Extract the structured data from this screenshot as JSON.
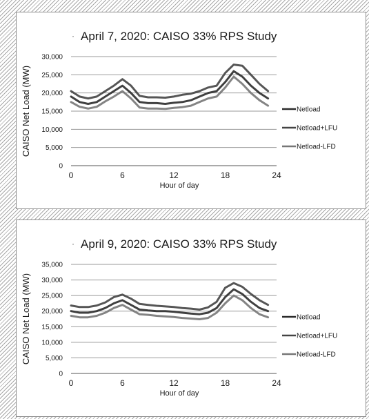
{
  "chart_data": [
    {
      "type": "line",
      "title": "April 7, 2020: CAISO  33% RPS Study",
      "xlabel": "Hour of day",
      "ylabel": "CAISO Net Load (MW)",
      "xlim": [
        0,
        24
      ],
      "ylim": [
        0,
        30000
      ],
      "xticks": [
        "0",
        "6",
        "12",
        "18",
        "24"
      ],
      "yticks": [
        "0",
        "5,000",
        "10,000",
        "15,000",
        "20,000",
        "25,000",
        "30,000"
      ],
      "grid": true,
      "legend_position": "right",
      "x": [
        0,
        1,
        2,
        3,
        4,
        5,
        6,
        7,
        8,
        9,
        10,
        11,
        12,
        13,
        14,
        15,
        16,
        17,
        18,
        19,
        20,
        21,
        22,
        23
      ],
      "series": [
        {
          "name": "Netload",
          "color": "#2b2b2b",
          "values": [
            19000,
            17500,
            17000,
            17500,
            19000,
            20500,
            22000,
            20000,
            17500,
            17200,
            17200,
            17000,
            17300,
            17500,
            18000,
            19000,
            20000,
            20500,
            23000,
            26000,
            24500,
            22000,
            20000,
            18500
          ]
        },
        {
          "name": "Netload+LFU",
          "color": "#444444",
          "values": [
            20500,
            19000,
            18500,
            19000,
            20500,
            22000,
            23800,
            22000,
            19200,
            18800,
            18800,
            18700,
            19000,
            19500,
            19800,
            20500,
            21500,
            22000,
            25500,
            27800,
            27500,
            25000,
            22500,
            20500
          ]
        },
        {
          "name": "Netload-LFD",
          "color": "#777777",
          "values": [
            17500,
            16200,
            15700,
            16200,
            17700,
            19000,
            20500,
            18500,
            16000,
            15700,
            15700,
            15600,
            15900,
            16100,
            16500,
            17500,
            18500,
            19000,
            21500,
            24500,
            22500,
            20000,
            18000,
            16500
          ]
        }
      ]
    },
    {
      "type": "line",
      "title": "April 9, 2020: CAISO  33% RPS Study",
      "xlabel": "Hour of day",
      "ylabel": "CAISO Net Load (MW)",
      "xlim": [
        0,
        24
      ],
      "ylim": [
        0,
        35000
      ],
      "xticks": [
        "0",
        "6",
        "12",
        "18",
        "24"
      ],
      "yticks": [
        "0",
        "5,000",
        "10,000",
        "15,000",
        "20,000",
        "25,000",
        "30,000",
        "35,000"
      ],
      "grid": true,
      "legend_position": "right",
      "x": [
        0,
        1,
        2,
        3,
        4,
        5,
        6,
        7,
        8,
        9,
        10,
        11,
        12,
        13,
        14,
        15,
        16,
        17,
        18,
        19,
        20,
        21,
        22,
        23
      ],
      "series": [
        {
          "name": "Netload",
          "color": "#2b2b2b",
          "values": [
            20000,
            19500,
            19500,
            20000,
            21000,
            22500,
            23500,
            22000,
            20500,
            20200,
            20000,
            20000,
            19800,
            19500,
            19200,
            19000,
            19500,
            21000,
            24500,
            27000,
            25500,
            23000,
            21000,
            20000
          ]
        },
        {
          "name": "Netload+LFU",
          "color": "#444444",
          "values": [
            21800,
            21300,
            21300,
            21800,
            22800,
            24500,
            25300,
            24000,
            22300,
            22000,
            21700,
            21500,
            21300,
            21000,
            20800,
            20500,
            21200,
            23000,
            27500,
            29000,
            27800,
            25500,
            23500,
            22000
          ]
        },
        {
          "name": "Netload-LFD",
          "color": "#777777",
          "values": [
            18500,
            18000,
            18000,
            18500,
            19500,
            21000,
            22000,
            20500,
            19000,
            18800,
            18500,
            18300,
            18100,
            17800,
            17600,
            17400,
            17800,
            19500,
            22500,
            25000,
            23500,
            21000,
            19000,
            18000
          ]
        }
      ]
    }
  ]
}
